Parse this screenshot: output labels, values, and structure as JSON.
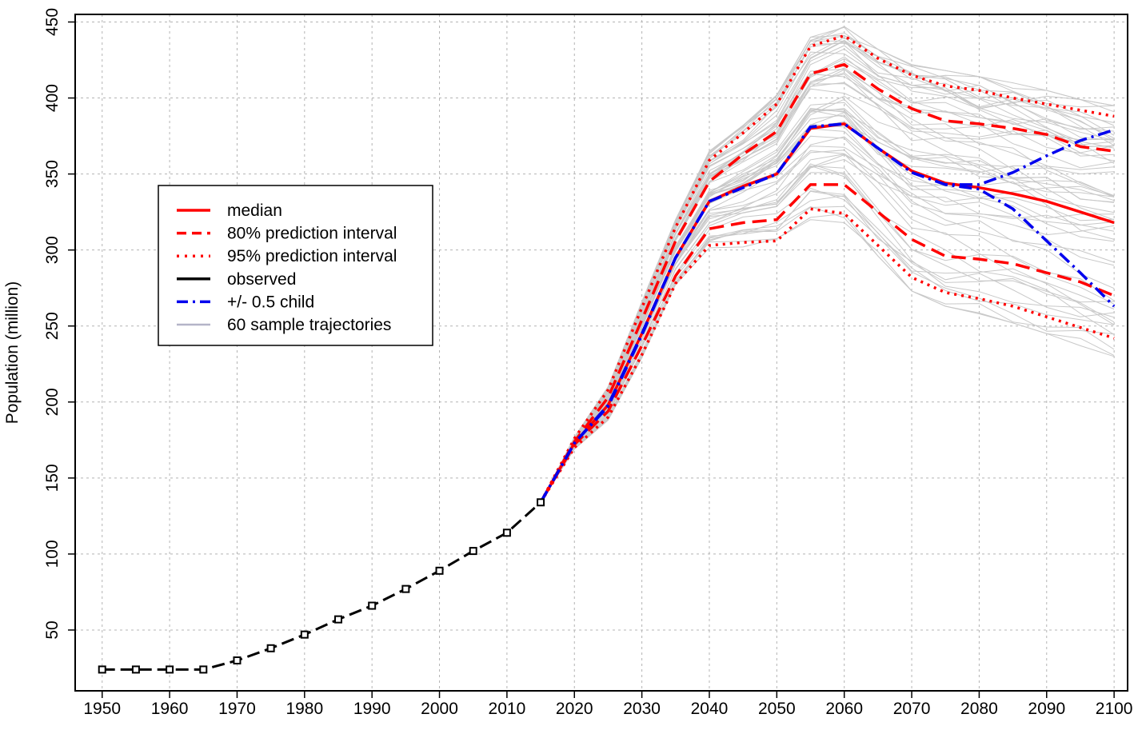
{
  "chart_data": {
    "type": "line",
    "ylabel": "Population (million)",
    "xlabel": "",
    "xlim": [
      1946,
      2102
    ],
    "ylim": [
      10,
      455
    ],
    "x_ticks": [
      1950,
      1960,
      1970,
      1980,
      1990,
      2000,
      2010,
      2020,
      2030,
      2040,
      2050,
      2060,
      2070,
      2080,
      2090,
      2100
    ],
    "y_ticks": [
      50,
      100,
      150,
      200,
      250,
      300,
      350,
      400,
      450
    ],
    "grid": true,
    "legend_position": "left",
    "colors": {
      "median": "#ff0000",
      "observed": "#000000",
      "child": "#0000ee",
      "trajectories": "#c8c8c8",
      "grid": "#b4b4b4"
    },
    "legend": [
      {
        "label": "median",
        "style": "solid",
        "color": "#ff0000"
      },
      {
        "label": "80% prediction interval",
        "style": "dashed",
        "color": "#ff0000"
      },
      {
        "label": "95% prediction interval",
        "style": "dotted",
        "color": "#ff0000"
      },
      {
        "label": "observed",
        "style": "solid",
        "color": "#000000"
      },
      {
        "label": "+/- 0.5 child",
        "style": "dashdot",
        "color": "#0000ee"
      },
      {
        "label": "60 sample trajectories",
        "style": "solid",
        "color": "#b4b4c8"
      }
    ],
    "series": [
      {
        "name": "observed",
        "x": [
          1950,
          1955,
          1960,
          1965,
          1970,
          1975,
          1980,
          1985,
          1990,
          1995,
          2000,
          2005,
          2010,
          2015
        ],
        "values": [
          24,
          24,
          24,
          24,
          30,
          38,
          47,
          57,
          66,
          77,
          89,
          102,
          114,
          134
        ]
      },
      {
        "name": "median",
        "x": [
          2015,
          2020,
          2025,
          2030,
          2035,
          2040,
          2045,
          2050,
          2055,
          2060,
          2065,
          2070,
          2075,
          2080,
          2085,
          2090,
          2095,
          2100
        ],
        "values": [
          134,
          173,
          198,
          245,
          295,
          332,
          342,
          350,
          380,
          383,
          367,
          352,
          344,
          341,
          337,
          332,
          325,
          318
        ]
      },
      {
        "name": "80% prediction interval",
        "x": [
          2015,
          2020,
          2025,
          2030,
          2035,
          2040,
          2045,
          2050,
          2055,
          2060,
          2065,
          2070,
          2075,
          2080,
          2085,
          2090,
          2095,
          2100
        ],
        "values": [
          134,
          172,
          194,
          237,
          283,
          314,
          318,
          320,
          343,
          343,
          325,
          307,
          296,
          294,
          291,
          285,
          279,
          270
        ]
      },
      {
        "name": "80% prediction interval",
        "x": [
          2015,
          2020,
          2025,
          2030,
          2035,
          2040,
          2045,
          2050,
          2055,
          2060,
          2065,
          2070,
          2075,
          2080,
          2085,
          2090,
          2095,
          2100
        ],
        "values": [
          134,
          174,
          203,
          254,
          306,
          345,
          363,
          378,
          416,
          422,
          406,
          393,
          385,
          383,
          380,
          376,
          368,
          365
        ]
      },
      {
        "name": "95% prediction interval",
        "x": [
          2015,
          2020,
          2025,
          2030,
          2035,
          2040,
          2045,
          2050,
          2055,
          2060,
          2065,
          2070,
          2075,
          2080,
          2085,
          2090,
          2095,
          2100
        ],
        "values": [
          134,
          170,
          190,
          231,
          278,
          303,
          305,
          306,
          327,
          324,
          303,
          282,
          272,
          268,
          263,
          256,
          249,
          242
        ]
      },
      {
        "name": "95% prediction interval",
        "x": [
          2015,
          2020,
          2025,
          2030,
          2035,
          2040,
          2045,
          2050,
          2055,
          2060,
          2065,
          2070,
          2075,
          2080,
          2085,
          2090,
          2095,
          2100
        ],
        "values": [
          134,
          176,
          208,
          262,
          315,
          359,
          377,
          396,
          434,
          441,
          426,
          415,
          408,
          405,
          400,
          396,
          392,
          388
        ]
      },
      {
        "name": "+/- 0.5 child",
        "x": [
          2015,
          2020,
          2025,
          2030,
          2035,
          2040,
          2045,
          2050,
          2055,
          2060,
          2065,
          2070,
          2075,
          2080,
          2085,
          2090,
          2095,
          2100
        ],
        "values": [
          134,
          173,
          198,
          245,
          295,
          332,
          341,
          350,
          381,
          383,
          367,
          351,
          343,
          343,
          351,
          362,
          372,
          379
        ]
      },
      {
        "name": "+/- 0.5 child",
        "x": [
          2015,
          2020,
          2025,
          2030,
          2035,
          2040,
          2045,
          2050,
          2055,
          2060,
          2065,
          2070,
          2075,
          2080,
          2085,
          2090,
          2095,
          2100
        ],
        "values": [
          134,
          173,
          197,
          244,
          295,
          332,
          341,
          350,
          381,
          383,
          367,
          351,
          343,
          340,
          327,
          306,
          285,
          263
        ]
      }
    ],
    "sample_trajectories": {
      "count": 60,
      "x": [
        2015,
        2020,
        2025,
        2030,
        2035,
        2040,
        2045,
        2050,
        2055,
        2060,
        2065,
        2070,
        2075,
        2080,
        2085,
        2090,
        2095,
        2100
      ],
      "envelope_low": [
        134,
        169,
        188,
        228,
        275,
        300,
        302,
        303,
        320,
        318,
        296,
        273,
        263,
        258,
        252,
        245,
        237,
        230
      ],
      "envelope_high": [
        134,
        177,
        210,
        266,
        320,
        365,
        382,
        402,
        440,
        447,
        432,
        422,
        418,
        414,
        410,
        405,
        399,
        395
      ]
    }
  }
}
